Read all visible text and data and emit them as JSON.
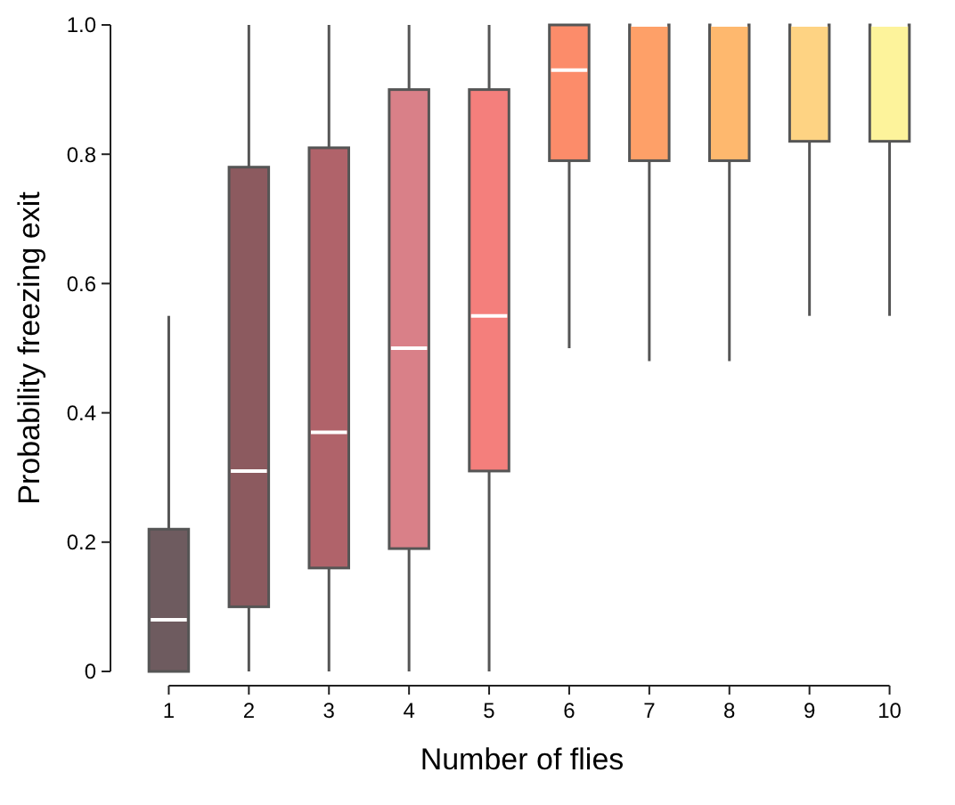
{
  "chart_data": {
    "type": "box",
    "xlabel": "Number of flies",
    "ylabel": "Probability freezing exit",
    "categories": [
      "1",
      "2",
      "3",
      "4",
      "5",
      "6",
      "7",
      "8",
      "9",
      "10"
    ],
    "boxes": [
      {
        "low": 0,
        "q1": 0,
        "median": 0.08,
        "q3": 0.22,
        "high": 0.55
      },
      {
        "low": 0,
        "q1": 0.1,
        "median": 0.31,
        "q3": 0.78,
        "high": 1
      },
      {
        "low": 0,
        "q1": 0.16,
        "median": 0.37,
        "q3": 0.81,
        "high": 1
      },
      {
        "low": 0,
        "q1": 0.19,
        "median": 0.5,
        "q3": 0.9,
        "high": 1
      },
      {
        "low": 0,
        "q1": 0.31,
        "median": 0.55,
        "q3": 0.9,
        "high": 1
      },
      {
        "low": 0.5,
        "q1": 0.79,
        "median": 0.93,
        "q3": 1,
        "high": 1
      },
      {
        "low": 0.48,
        "q1": 0.79,
        "median": 1,
        "q3": 1,
        "high": 1
      },
      {
        "low": 0.48,
        "q1": 0.79,
        "median": 1,
        "q3": 1,
        "high": 1
      },
      {
        "low": 0.55,
        "q1": 0.82,
        "median": 1,
        "q3": 1,
        "high": 1
      },
      {
        "low": 0.55,
        "q1": 0.82,
        "median": 1,
        "q3": 1,
        "high": 1
      }
    ],
    "colors": [
      "#6e5b5f",
      "#8c5a5f",
      "#b0636a",
      "#d98088",
      "#f47f7c",
      "#fc8c6a",
      "#fea068",
      "#feb86e",
      "#fed383",
      "#fdf39b"
    ],
    "ylim": [
      0,
      1
    ],
    "yticks": [
      0,
      0.2,
      0.4,
      0.6,
      0.8,
      {
        "value": 1,
        "label": "1.0"
      }
    ],
    "grid": false
  }
}
